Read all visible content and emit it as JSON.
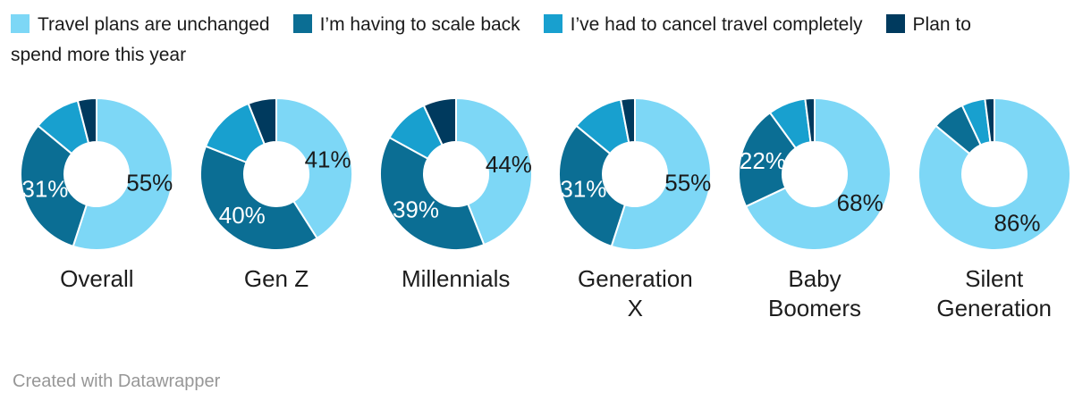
{
  "legend": {
    "items": [
      {
        "label": "Travel plans are unchanged",
        "color": "#7DD7F6"
      },
      {
        "label": "I’m having to scale back",
        "color": "#0B6E94"
      },
      {
        "label": "I’ve had to cancel travel completely",
        "color": "#18A0CF"
      },
      {
        "label": "Plan to\nspend more this year",
        "color": "#003A5E"
      }
    ]
  },
  "chart_data": {
    "type": "pie",
    "subtype": "donut-small-multiples",
    "series_names": [
      "Travel plans are unchanged",
      "I’m having to scale back",
      "I’ve had to cancel travel completely",
      "Plan to spend more this year"
    ],
    "colors": [
      "#7DD7F6",
      "#0B6E94",
      "#18A0CF",
      "#003A5E"
    ],
    "label_text_colors": [
      "#1a1a1a",
      "#ffffff",
      "#ffffff",
      "#ffffff"
    ],
    "legend_position": "top",
    "start_angle": "12-o-clock",
    "direction": "clockwise",
    "donuts": [
      {
        "category": "Overall",
        "values": [
          55,
          31,
          10,
          4
        ],
        "value_labels": [
          "55%",
          "31%",
          "",
          ""
        ]
      },
      {
        "category": "Gen Z",
        "values": [
          41,
          40,
          13,
          6
        ],
        "value_labels": [
          "41%",
          "40%",
          "",
          ""
        ]
      },
      {
        "category": "Millennials",
        "values": [
          44,
          39,
          10,
          7
        ],
        "value_labels": [
          "44%",
          "39%",
          "",
          ""
        ]
      },
      {
        "category": "Generation\nX",
        "values": [
          55,
          31,
          11,
          3
        ],
        "value_labels": [
          "55%",
          "31%",
          "",
          ""
        ]
      },
      {
        "category": "Baby\nBoomers",
        "values": [
          68,
          22,
          8,
          2
        ],
        "value_labels": [
          "68%",
          "22%",
          "",
          ""
        ]
      },
      {
        "category": "Silent\nGeneration",
        "values": [
          86,
          7,
          5,
          2
        ],
        "value_labels": [
          "86%",
          "",
          "",
          ""
        ]
      }
    ]
  },
  "footer": {
    "credit": "Created with Datawrapper"
  }
}
